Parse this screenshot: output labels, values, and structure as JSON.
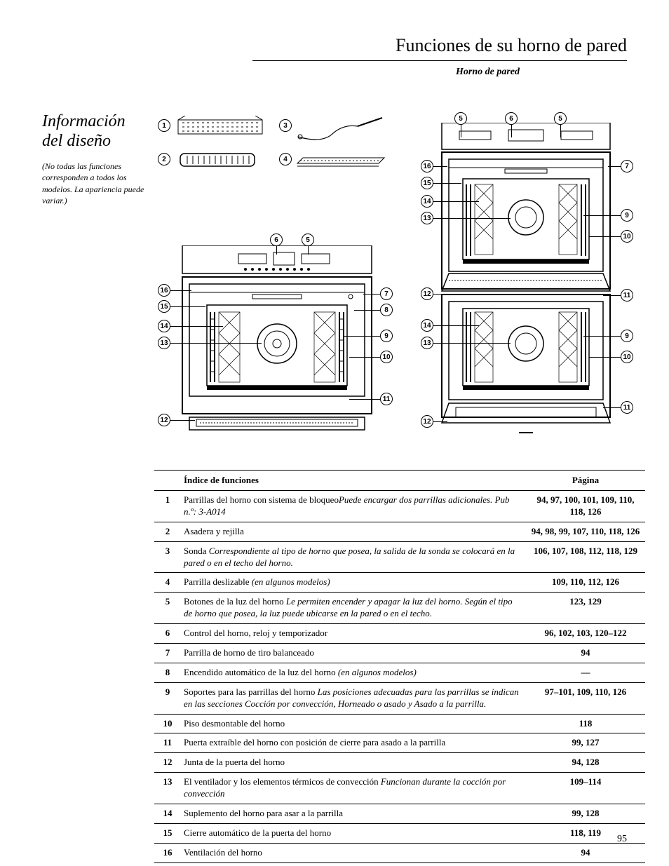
{
  "header": {
    "title": "Funciones de su horno de pared",
    "subtitle": "Horno de pared"
  },
  "section": {
    "heading": "Información del diseño",
    "note": "(No todas las funciones corresponden a todos los modelos.\nLa apariencia puede variar.)"
  },
  "table": {
    "head_index": "Índice de funciones",
    "head_page": "Página",
    "rows": [
      {
        "n": "1",
        "desc": "Parrillas del horno con sistema de bloqueo",
        "note": "Puede encargar dos parrillas adicionales. Pub n.º: 3-A014",
        "pg": "94, 97, 100, 101, 109, 110, 118, 126"
      },
      {
        "n": "2",
        "desc": "Asadera y rejilla",
        "note": "",
        "pg": "94, 98, 99, 107, 110, 118, 126"
      },
      {
        "n": "3",
        "desc": "Sonda ",
        "note": "Correspondiente al tipo de horno que posea, la salida de la sonda se colocará en la pared o en el techo del horno.",
        "pg": "106, 107, 108, 112, 118, 129"
      },
      {
        "n": "4",
        "desc": "Parrilla deslizable ",
        "note": "(en algunos modelos)",
        "pg": "109, 110, 112, 126"
      },
      {
        "n": "5",
        "desc": "Botones de la luz del horno ",
        "note": "Le permiten encender y apagar la luz del horno. Según el tipo de horno que posea, la luz puede ubicarse en la pared o en el techo.",
        "pg": "123, 129"
      },
      {
        "n": "6",
        "desc": "Control del horno, reloj y temporizador",
        "note": "",
        "pg": "96, 102, 103, 120–122"
      },
      {
        "n": "7",
        "desc": "Parrilla de horno de tiro balanceado",
        "note": "",
        "pg": "94"
      },
      {
        "n": "8",
        "desc": "Encendido automático de la luz del horno ",
        "note": "(en algunos modelos)",
        "pg": "—"
      },
      {
        "n": "9",
        "desc": "Soportes para las parrillas del horno ",
        "note": "Las posiciones adecuadas para las parrillas se indican en las secciones Cocción por convección, Horneado o asado y Asado a la parrilla.",
        "pg": "97–101, 109, 110, 126"
      },
      {
        "n": "10",
        "desc": "Piso desmontable del horno",
        "note": "",
        "pg": "118"
      },
      {
        "n": "11",
        "desc": "Puerta extraíble del horno con posición de cierre para asado a la parrilla",
        "note": "",
        "pg": "99, 127"
      },
      {
        "n": "12",
        "desc": "Junta de la puerta del horno",
        "note": "",
        "pg": "94, 128"
      },
      {
        "n": "13",
        "desc": "El ventilador y los elementos térmicos de convección ",
        "note": "Funcionan durante la cocción por convección",
        "pg": "109–114"
      },
      {
        "n": "14",
        "desc": "Suplemento del horno para asar a la parrilla",
        "note": "",
        "pg": "99, 128"
      },
      {
        "n": "15",
        "desc": "Cierre automático de la puerta del horno",
        "note": "",
        "pg": "118, 119"
      },
      {
        "n": "16",
        "desc": "Ventilación del horno",
        "note": "",
        "pg": "94"
      }
    ]
  },
  "page_number": "95",
  "callouts_small": [
    "1",
    "2",
    "3",
    "4"
  ],
  "diagram_style": {
    "stroke": "#000000",
    "stroke_width": 1.2,
    "callout_diameter": 18,
    "callout_fontsize": 10
  }
}
